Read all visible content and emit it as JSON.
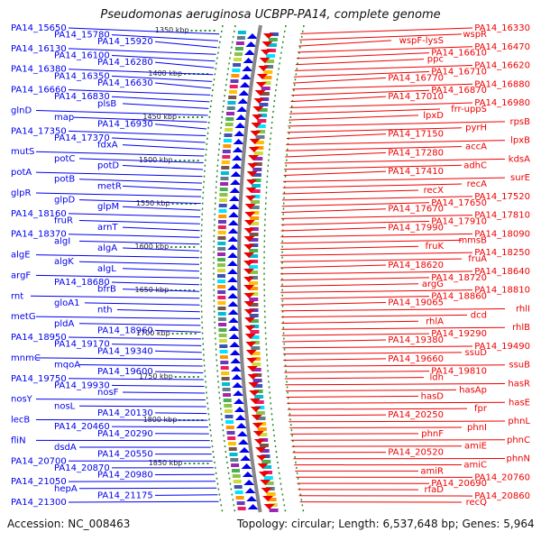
{
  "title": "Pseudomonas aeruginosa UCBPP-PA14, complete genome",
  "footer": {
    "accession": "Accession: NC_008463",
    "summary": "Topology: circular; Length: 6,537,648 bp; Genes: 5,964"
  },
  "colors": {
    "forward_strand": "#0000ee",
    "reverse_strand": "#ee0000",
    "backbone": "#888888",
    "tick": "#228b22"
  },
  "scale_marks": [
    {
      "label": "1350 kbp"
    },
    {
      "label": "1400 kbp"
    },
    {
      "label": "1450 kbp"
    },
    {
      "label": "1500 kbp"
    },
    {
      "label": "1550 kbp"
    },
    {
      "label": "1600 kbp"
    },
    {
      "label": "1650 kbp"
    },
    {
      "label": "1700 kbp"
    },
    {
      "label": "1750 kbp"
    },
    {
      "label": "1800 kbp"
    },
    {
      "label": "1850 kbp"
    }
  ],
  "forward_labels": [
    "PA14_15650",
    "PA14_15780",
    "PA14_15920",
    "PA14_16130",
    "PA14_16100",
    "PA14_16280",
    "PA14_16380",
    "PA14_16350",
    "PA14_16630",
    "PA14_16660",
    "PA14_16830",
    "plsB",
    "glnD",
    "map",
    "PA14_16930",
    "PA14_17350",
    "PA14_17370",
    "fdxA",
    "mutS",
    "potC",
    "potD",
    "potA",
    "potB",
    "metR",
    "glpR",
    "glpD",
    "glpM",
    "PA14_18160",
    "fruR",
    "arnT",
    "PA14_18370",
    "algI",
    "algA",
    "algE",
    "algK",
    "algL",
    "argF",
    "PA14_18680",
    "bfrB",
    "rnt",
    "gloA1",
    "nth",
    "metG",
    "pldA",
    "PA14_18960",
    "PA14_18950",
    "PA14_19170",
    "PA14_19340",
    "mnmC",
    "mqoA",
    "PA14_19600",
    "PA14_19750",
    "PA14_19930",
    "nosF",
    "nosY",
    "nosL",
    "PA14_20130",
    "lecB",
    "PA14_20460",
    "PA14_20290",
    "fliN",
    "dsdA",
    "PA14_20550",
    "PA14_20700",
    "PA14_20870",
    "PA14_20980",
    "PA14_21050",
    "hepA",
    "PA14_21175",
    "PA14_21300"
  ],
  "reverse_labels": [
    "PA14_16330",
    "wspR",
    "wspF-lysS",
    "PA14_16470",
    "PA14_16610",
    "ppc",
    "PA14_16620",
    "PA14_16710",
    "PA14_16770",
    "PA14_16880",
    "PA14_16870",
    "PA14_17010",
    "PA14_16980",
    "frr-uppS",
    "lpxD",
    "rpsB",
    "pyrH",
    "PA14_17150",
    "lpxB",
    "accA",
    "PA14_17280",
    "kdsA",
    "adhC",
    "PA14_17410",
    "surE",
    "recA",
    "recX",
    "PA14_17520",
    "PA14_17650",
    "PA14_17670",
    "PA14_17810",
    "PA14_17910",
    "PA14_17990",
    "PA14_18090",
    "mmsB",
    "fruK",
    "PA14_18250",
    "fruA",
    "PA14_18620",
    "PA14_18640",
    "PA14_18720",
    "argG",
    "PA14_18810",
    "PA14_18860",
    "PA14_19065",
    "rhlI",
    "dcd",
    "rhlA",
    "rhlB",
    "PA14_19290",
    "PA14_19380",
    "PA14_19490",
    "ssuD",
    "PA14_19660",
    "ssuB",
    "PA14_19810",
    "ldh",
    "hasR",
    "hasAp",
    "hasD",
    "hasE",
    "fpr",
    "PA14_20250",
    "phnL",
    "phnI",
    "phnF",
    "phnC",
    "amiE",
    "PA14_20520",
    "phnN",
    "amiC",
    "amiR",
    "PA14_20760",
    "PA14_20690",
    "rfaD",
    "PA14_20860",
    "recQ"
  ]
}
